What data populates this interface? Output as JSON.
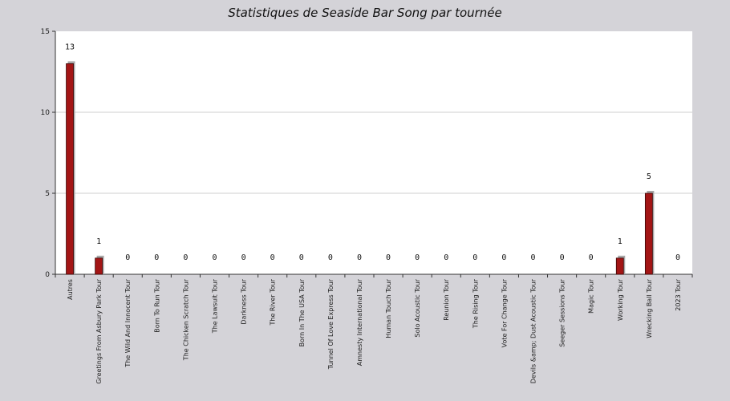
{
  "chart_data": {
    "type": "bar",
    "title": "Statistiques de Seaside Bar Song par tournée",
    "xlabel": "",
    "ylabel": "",
    "ylim": [
      0,
      15
    ],
    "yticks": [
      0,
      5,
      10,
      15
    ],
    "grid": true,
    "categories": [
      "Autres",
      "Greetings From Asbury Park Tour",
      "The Wild And Innocent Tour",
      "Born To Run Tour",
      "The Chicken Scratch Tour",
      "The Lawsuit Tour",
      "Darkness Tour",
      "The River Tour",
      "Born In The USA Tour",
      "Tunnel Of Love Express Tour",
      "Amnesty International Tour",
      "Human Touch Tour",
      "Solo Acoustic Tour",
      "Reunion Tour",
      "The Rising Tour",
      "Vote For Change Tour",
      "Devils &amp; Dust Acoustic Tour",
      "Seeger Sessions Tour",
      "Magic Tour",
      "Working Tour",
      "Wrecking Ball Tour",
      "2023 Tour"
    ],
    "values": [
      13,
      1,
      0,
      0,
      0,
      0,
      0,
      0,
      0,
      0,
      0,
      0,
      0,
      0,
      0,
      0,
      0,
      0,
      0,
      1,
      5,
      0
    ],
    "bar_color": "#a31515",
    "shadow_color": "#a8a8a8",
    "plot_background": "#ffffff",
    "page_background": "#d4d3d8",
    "grid_color": "#cfcfcf"
  }
}
